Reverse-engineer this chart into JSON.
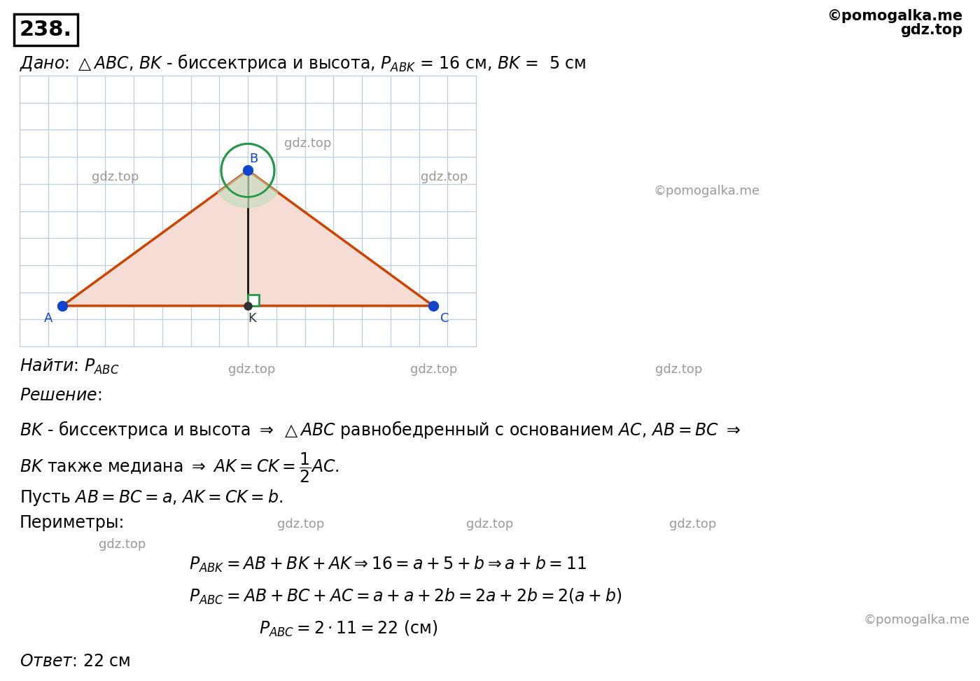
{
  "bg_color": "#ffffff",
  "grid_color": "#b8cfe0",
  "triangle_fill": "#f5ddd5",
  "triangle_edge": "#cc4400",
  "point_color": "#1144cc",
  "K_color": "#333333",
  "bisector_color": "#111111",
  "angle_arc_color": "#229944",
  "right_angle_color": "#229944",
  "problem_number": "238.",
  "wm_tr_1": "©pomogalka.me",
  "wm_tr_2": "gdz.top",
  "wm_diag_left": "gdz.top",
  "wm_diag_mid": "gdz.top",
  "wm_diag_right": "gdz.top",
  "wm_right_mid": "©pomogalka.me",
  "wm_find_1": "gdz.top",
  "wm_find_2": "gdz.top",
  "wm_find_3": "gdz.top",
  "wm_per_1": "gdz.top",
  "wm_per_2": "gdz.top",
  "wm_per_3": "gdz.top",
  "wm_per_4": "gdz.top",
  "wm_bottom_right": "©pomogalka.me"
}
